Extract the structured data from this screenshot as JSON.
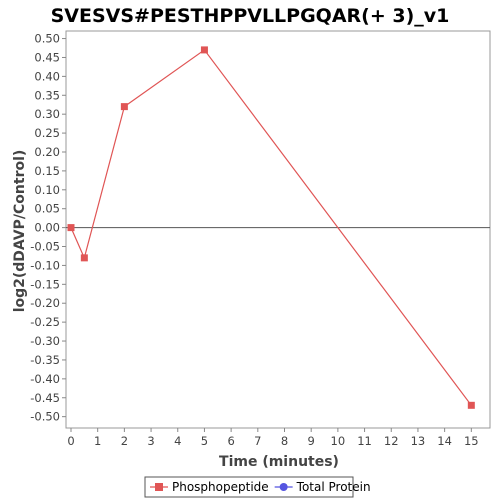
{
  "chart_data": {
    "type": "line",
    "title": "SVESVS#PESTHPPVLLPGQAR(+ 3)_v1",
    "xlabel": "Time (minutes)",
    "ylabel": "log2(dDAVP/Control)",
    "xlim": [
      0,
      15.7
    ],
    "ylim": [
      -0.53,
      0.52
    ],
    "xticks": [
      0,
      1,
      2,
      3,
      4,
      5,
      6,
      7,
      8,
      9,
      10,
      11,
      12,
      13,
      14,
      15
    ],
    "yticks": [
      0.5,
      0.45,
      0.4,
      0.35,
      0.3,
      0.25,
      0.2,
      0.15,
      0.1,
      0.05,
      0.0,
      -0.05,
      -0.1,
      -0.15,
      -0.2,
      -0.25,
      -0.3,
      -0.35,
      -0.4,
      -0.45,
      -0.5
    ],
    "ytick_labels": [
      "0.50",
      "0.45",
      "0.40",
      "0.35",
      "0.30",
      "0.25",
      "0.20",
      "0.15",
      "0.10",
      "0.05",
      "0.00",
      "-0.05",
      "-0.10",
      "-0.15",
      "-0.20",
      "-0.25",
      "-0.30",
      "-0.35",
      "-0.40",
      "-0.45",
      "-0.50"
    ],
    "grid": false,
    "zero_line": true,
    "legend_position": "bottom",
    "series": [
      {
        "name": "Phosphopeptide",
        "color": "#e05555",
        "marker": "square",
        "x": [
          0,
          0.5,
          2,
          5,
          15
        ],
        "y": [
          0.0,
          -0.08,
          0.32,
          0.47,
          -0.47
        ]
      },
      {
        "name": "Total Protein",
        "color": "#5555e0",
        "marker": "circle",
        "x": [],
        "y": []
      }
    ]
  }
}
